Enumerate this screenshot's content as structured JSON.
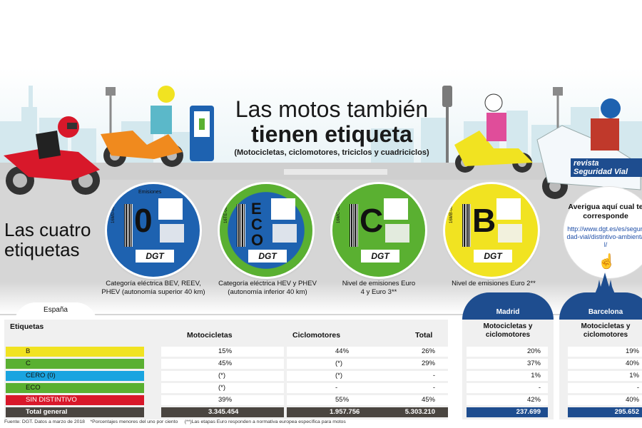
{
  "header": {
    "title_line1": "Las motos también",
    "title_line2": "tienen etiqueta",
    "subtitle": "(Motocicletas, ciclomotores, triciclos y cuadriciclos)",
    "logo_text": "revista Seguridad Vial"
  },
  "section": {
    "heading": "Las cuatro etiquetas"
  },
  "stickers": [
    {
      "letter": "0",
      "top_label": "Emisiones",
      "code": "16M0-0000000",
      "brand": "DGT",
      "color": "#1e62b0",
      "inner": "#1e62b0",
      "caption": "Categoría eléctrica BEV, REEV, PHEV (autonomía superior 40 km)"
    },
    {
      "letter": "ECO",
      "top_label": "",
      "code": "16TE-0000000",
      "brand": "DGT",
      "color": "#5ab031",
      "inner": "#1e62b0",
      "caption": "Categoría eléctrica HEV y PHEV (autonomía inferior 40 km)"
    },
    {
      "letter": "C",
      "top_label": "",
      "code": "16MC-0000000",
      "brand": "DGT",
      "color": "#5ab031",
      "inner": "#5ab031",
      "caption": "Nivel de emisiones Euro 4 y Euro 3**"
    },
    {
      "letter": "B",
      "top_label": "",
      "code": "16MB-0000000",
      "brand": "DGT",
      "color": "#f1e321",
      "inner": "#f1e321",
      "caption": "Nivel de emisiones Euro 2**"
    }
  ],
  "info": {
    "title": "Averigua aquí cual te corresponde",
    "url": "http://www.dgt.es/es/seguridad-vial/distintivo-ambiental/",
    "cursor_icon": "pointer-click-icon"
  },
  "table": {
    "tab": "España",
    "headers": {
      "label": "Etiquetas",
      "moto": "Motocicletas",
      "ciclo": "Ciclomotores",
      "total": "Total"
    },
    "rows": [
      {
        "label": "B",
        "color": "#f1e321",
        "moto": "15%",
        "ciclo": "44%",
        "total": "26%",
        "madrid": "20%",
        "barcelona": "19%"
      },
      {
        "label": "C",
        "color": "#5ab031",
        "moto": "45%",
        "ciclo": "(*)",
        "total": "29%",
        "madrid": "37%",
        "barcelona": "40%"
      },
      {
        "label": "CERO (0)",
        "color": "#1aa4e0",
        "moto": "(*)",
        "ciclo": "(*)",
        "total": "-",
        "madrid": "1%",
        "barcelona": "1%"
      },
      {
        "label": "ECO",
        "color": "#5ab031",
        "moto": "(*)",
        "ciclo": "-",
        "total": "-",
        "madrid": "-",
        "barcelona": "-"
      },
      {
        "label": "SIN DISTINTIVO",
        "color": "#d8182a",
        "moto": "39%",
        "ciclo": "55%",
        "total": "45%",
        "madrid": "42%",
        "barcelona": "40%"
      }
    ],
    "total": {
      "label": "Total general",
      "moto": "3.345.454",
      "ciclo": "1.957.756",
      "total": "5.303.210",
      "madrid": "237.699",
      "barcelona": "295.652"
    },
    "madrid": {
      "name": "Madrid",
      "header": "Motocicletas y ciclomotores"
    },
    "barcelona": {
      "name": "Barcelona",
      "header": "Motocicletas y ciclomotores"
    },
    "colors": {
      "city": "#1e4d8f",
      "total": "#4a4540"
    }
  },
  "footer": {
    "source": "Fuente: DGT. Datos a marzo de 2018",
    "note1": "*Porcentajes menores del uno por ciento",
    "note2": "(**)Las etapas Euro responden a normativa europea específica para motos"
  }
}
